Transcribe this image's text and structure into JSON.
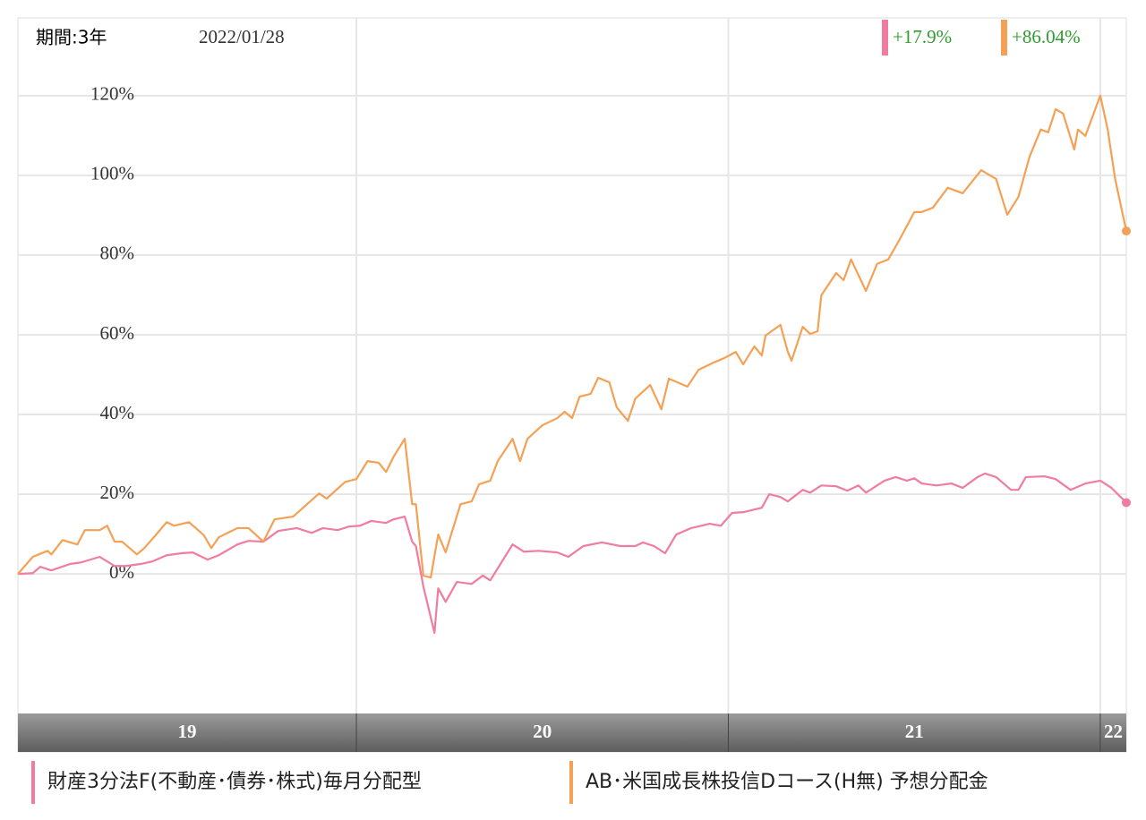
{
  "chart_data": {
    "type": "line",
    "period_label": "期間:3年",
    "date": "2022/01/28",
    "xlim": [
      2019.09,
      2022.07
    ],
    "xticks": [
      {
        "value": 2019,
        "label": "19"
      },
      {
        "value": 2020,
        "label": "20"
      },
      {
        "value": 2021,
        "label": "21"
      },
      {
        "value": 2022,
        "label": "22"
      }
    ],
    "ylim": [
      -35,
      139.5
    ],
    "yticks": [
      {
        "value": 0,
        "label": "0%"
      },
      {
        "value": 20,
        "label": "20%"
      },
      {
        "value": 40,
        "label": "40%"
      },
      {
        "value": 60,
        "label": "60%"
      },
      {
        "value": 80,
        "label": "80%"
      },
      {
        "value": 100,
        "label": "100%"
      },
      {
        "value": 120,
        "label": "120%"
      }
    ],
    "grid": true,
    "series": [
      {
        "name": "財産3分法F(不動産･債券･株式)毎月分配型",
        "color": "#f07ca0",
        "change": {
          "value": 17.9,
          "label": "+17.9%"
        },
        "x": [
          2019.09,
          2019.13,
          2019.15,
          2019.18,
          2019.23,
          2019.26,
          2019.31,
          2019.35,
          2019.38,
          2019.42,
          2019.45,
          2019.49,
          2019.53,
          2019.56,
          2019.6,
          2019.63,
          2019.68,
          2019.71,
          2019.75,
          2019.79,
          2019.84,
          2019.88,
          2019.91,
          2019.95,
          2019.98,
          2020.01,
          2020.04,
          2020.08,
          2020.1,
          2020.13,
          2020.15,
          2020.16,
          2020.18,
          2020.21,
          2020.22,
          2020.24,
          2020.27,
          2020.31,
          2020.34,
          2020.36,
          2020.42,
          2020.45,
          2020.49,
          2020.54,
          2020.57,
          2020.61,
          2020.66,
          2020.71,
          2020.75,
          2020.77,
          2020.8,
          2020.83,
          2020.86,
          2020.9,
          2020.95,
          2020.98,
          2021.01,
          2021.04,
          2021.09,
          2021.11,
          2021.14,
          2021.16,
          2021.2,
          2021.22,
          2021.25,
          2021.29,
          2021.32,
          2021.35,
          2021.37,
          2021.42,
          2021.45,
          2021.48,
          2021.5,
          2021.52,
          2021.56,
          2021.6,
          2021.63,
          2021.67,
          2021.69,
          2021.72,
          2021.76,
          2021.78,
          2021.8,
          2021.85,
          2021.88,
          2021.92,
          2021.96,
          2022.0,
          2022.03,
          2022.07
        ],
        "values": [
          0,
          0.2,
          1.8,
          0.9,
          2.5,
          2.9,
          4.3,
          2.0,
          2.0,
          2.5,
          3.1,
          4.7,
          5.2,
          5.4,
          3.6,
          4.7,
          7.4,
          8.3,
          8.1,
          10.8,
          11.5,
          10.3,
          11.5,
          11.0,
          11.9,
          12.1,
          13.3,
          12.8,
          13.7,
          14.4,
          8.1,
          7.0,
          -3.1,
          -14.8,
          -3.6,
          -7.0,
          -2.0,
          -2.5,
          -0.4,
          -1.6,
          7.4,
          5.6,
          5.8,
          5.4,
          4.3,
          7.0,
          7.9,
          7.0,
          7.0,
          7.9,
          7.0,
          5.2,
          9.9,
          11.5,
          12.6,
          12.1,
          15.3,
          15.5,
          16.6,
          20.0,
          19.3,
          18.2,
          21.1,
          20.4,
          22.2,
          22.0,
          20.9,
          22.2,
          20.4,
          23.4,
          24.3,
          23.4,
          24.0,
          22.7,
          22.2,
          22.7,
          21.6,
          24.3,
          25.2,
          24.3,
          21.1,
          21.1,
          24.3,
          24.5,
          23.8,
          21.1,
          22.7,
          23.4,
          21.6,
          17.9
        ]
      },
      {
        "name": "AB･米国成長株投信Dコース(H無) 予想分配金",
        "color": "#f4a155",
        "change": {
          "value": 86.04,
          "label": "+86.04%"
        },
        "x": [
          2019.09,
          2019.13,
          2019.17,
          2019.18,
          2019.21,
          2019.25,
          2019.27,
          2019.31,
          2019.33,
          2019.35,
          2019.37,
          2019.41,
          2019.43,
          2019.46,
          2019.49,
          2019.51,
          2019.55,
          2019.59,
          2019.61,
          2019.63,
          2019.68,
          2019.71,
          2019.75,
          2019.78,
          2019.83,
          2019.86,
          2019.9,
          2019.92,
          2019.97,
          2020.0,
          2020.03,
          2020.06,
          2020.08,
          2020.1,
          2020.13,
          2020.15,
          2020.16,
          2020.18,
          2020.2,
          2020.22,
          2020.24,
          2020.28,
          2020.31,
          2020.33,
          2020.36,
          2020.38,
          2020.42,
          2020.44,
          2020.46,
          2020.5,
          2020.54,
          2020.56,
          2020.58,
          2020.6,
          2020.63,
          2020.65,
          2020.68,
          2020.7,
          2020.73,
          2020.75,
          2020.79,
          2020.82,
          2020.84,
          2020.89,
          2020.92,
          2020.96,
          2020.99,
          2021.02,
          2021.04,
          2021.07,
          2021.09,
          2021.1,
          2021.14,
          2021.16,
          2021.17,
          2021.2,
          2021.22,
          2021.24,
          2021.25,
          2021.29,
          2021.31,
          2021.33,
          2021.37,
          2021.4,
          2021.43,
          2021.46,
          2021.5,
          2021.52,
          2021.55,
          2021.59,
          2021.63,
          2021.68,
          2021.72,
          2021.75,
          2021.78,
          2021.81,
          2021.84,
          2021.86,
          2021.88,
          2021.9,
          2021.93,
          2021.94,
          2021.96,
          2022.0,
          2022.02,
          2022.04,
          2022.07
        ],
        "values": [
          0,
          4.3,
          5.8,
          4.9,
          8.5,
          7.4,
          11,
          11,
          12.1,
          8.1,
          8.1,
          4.9,
          6.5,
          9.7,
          13,
          12.1,
          13,
          9.7,
          6.5,
          9.2,
          11.5,
          11.5,
          8.1,
          13.7,
          14.4,
          16.9,
          20.2,
          18.9,
          23.1,
          23.8,
          28.3,
          27.9,
          25.6,
          29.4,
          33.9,
          17.5,
          17.5,
          -0.4,
          -0.9,
          9.9,
          5.4,
          17.5,
          18.2,
          22.5,
          23.4,
          28.3,
          33.9,
          28.3,
          33.9,
          37.3,
          39.1,
          40.7,
          39.1,
          44.5,
          45.2,
          49.2,
          48.1,
          41.8,
          38.4,
          44.0,
          47.4,
          41.3,
          49.0,
          47.0,
          51.2,
          53.0,
          54.2,
          55.7,
          52.6,
          57.1,
          54.8,
          59.8,
          62.5,
          55.7,
          53.5,
          62.0,
          60.2,
          60.9,
          69.9,
          75.5,
          73.7,
          78.9,
          71.0,
          77.8,
          78.9,
          83.8,
          90.8,
          90.8,
          91.9,
          96.9,
          95.5,
          101.3,
          99.1,
          90.1,
          94.6,
          104.7,
          111.5,
          110.8,
          116.6,
          115.5,
          106.5,
          111.5,
          109.9,
          120.0,
          111.5,
          99.1,
          86.04
        ]
      }
    ]
  }
}
